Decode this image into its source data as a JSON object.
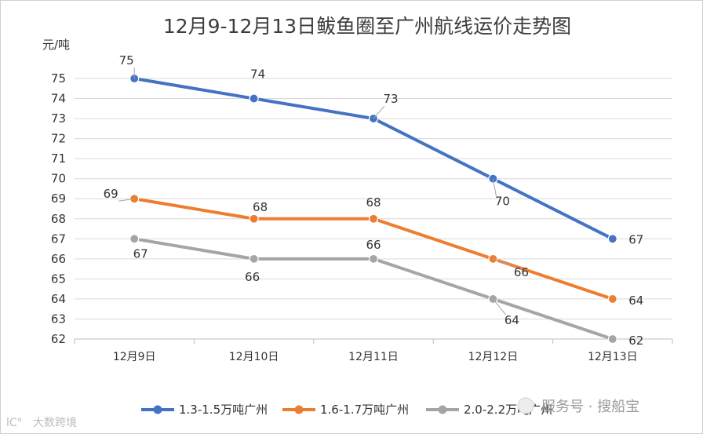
{
  "chart_data": {
    "type": "line",
    "title": "12月9-12月13日鲅鱼圈至广州航线运价走势图",
    "ylabel": "元/吨",
    "categories": [
      "12月9日",
      "12月10日",
      "12月11日",
      "12月12日",
      "12月13日"
    ],
    "ylim": [
      62,
      75
    ],
    "yticks": [
      62,
      63,
      64,
      65,
      66,
      67,
      68,
      69,
      70,
      71,
      72,
      73,
      74,
      75
    ],
    "grid": true,
    "legend_position": "bottom",
    "series": [
      {
        "name": "1.3-1.5万吨广州",
        "color": "#4472c4",
        "values": [
          75,
          74,
          73,
          70,
          67
        ]
      },
      {
        "name": "1.6-1.7万吨广州",
        "color": "#ed7d31",
        "values": [
          69,
          68,
          68,
          66,
          64
        ]
      },
      {
        "name": "2.0-2.2万吨广州",
        "color": "#a5a5a5",
        "values": [
          67,
          66,
          66,
          64,
          62
        ]
      }
    ]
  },
  "watermark": {
    "left_text": "大数跨境",
    "right_text": "服务号 · 搜船宝"
  }
}
